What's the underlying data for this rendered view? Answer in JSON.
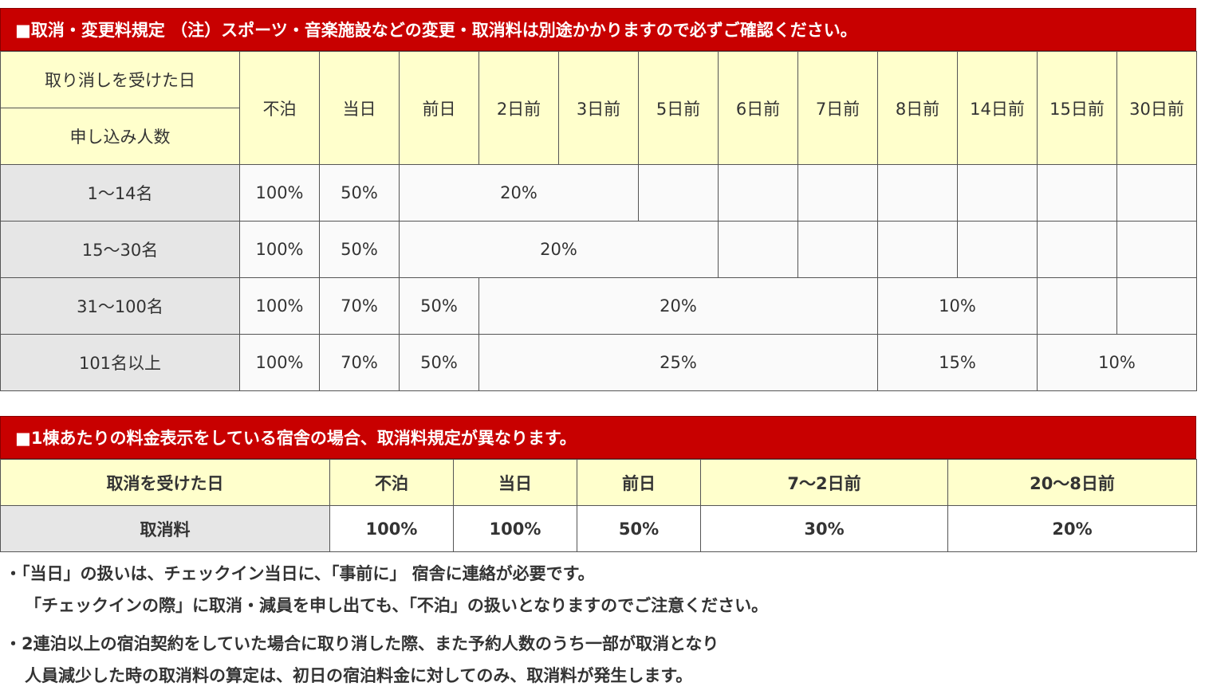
{
  "section1": {
    "title": "■取消・変更料規定 （注）スポーツ・音楽施設などの変更・取消料は別途かかりますので必ずご確認ください。",
    "row_header_top": "取り消しを受けた日",
    "row_header_bottom": "申し込み人数",
    "columns": [
      "不泊",
      "当日",
      "前日",
      "2日前",
      "3日前",
      "5日前",
      "6日前",
      "7日前",
      "8日前",
      "14日前",
      "15日前",
      "30日前"
    ],
    "rows": [
      {
        "label": "1～14名",
        "cells": [
          "100%",
          "50%",
          "20%"
        ]
      },
      {
        "label": "15～30名",
        "cells": [
          "100%",
          "50%",
          "20%"
        ]
      },
      {
        "label": "31～100名",
        "cells": [
          "100%",
          "70%",
          "50%",
          "20%",
          "10%"
        ]
      },
      {
        "label": "101名以上",
        "cells": [
          "100%",
          "70%",
          "50%",
          "25%",
          "15%",
          "10%"
        ]
      }
    ]
  },
  "section2": {
    "title": "■1棟あたりの料金表示をしている宿舎の場合、取消料規定が異なります。",
    "header_label": "取消を受けた日",
    "columns": [
      "不泊",
      "当日",
      "前日",
      "7～2日前",
      "20～8日前"
    ],
    "row_label": "取消料",
    "values": [
      "100%",
      "100%",
      "50%",
      "30%",
      "20%"
    ]
  },
  "notes": [
    {
      "line1": "・「当日」の扱いは、チェックイン当日に、「事前に」 宿舎に連絡が必要です。",
      "line2": "「チェックインの際」に取消・減員を申し出ても、「不泊」の扱いとなりますのでご注意ください。"
    },
    {
      "line1": "・2連泊以上の宿泊契約をしていた場合に取り消した際、また予約人数のうち一部が取消となり",
      "line2": "人員減少した時の取消料の算定は、初日の宿泊料金に対してのみ、取消料が発生します。"
    }
  ],
  "colors": {
    "banner": "#c80000",
    "header_bg": "#ffffcc",
    "label_bg": "#e6e6e6"
  }
}
